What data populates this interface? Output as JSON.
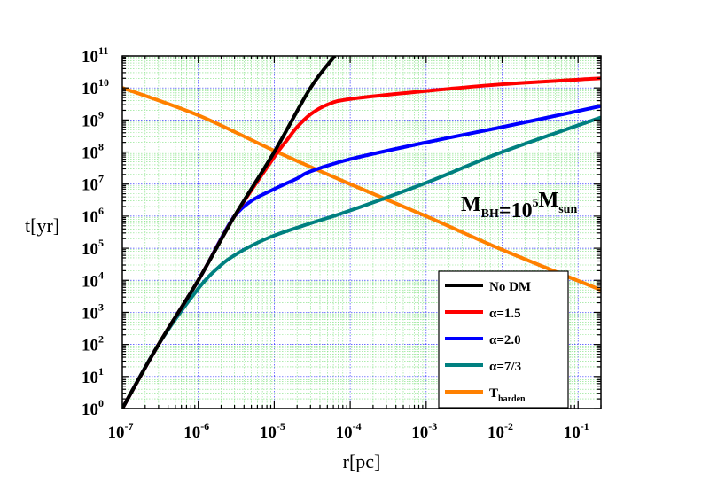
{
  "chart_data": {
    "type": "line",
    "xlabel": "r[pc]",
    "ylabel": "t[yr]",
    "x_scale": "log",
    "y_scale": "log",
    "xlim": [
      1e-07,
      0.2
    ],
    "ylim": [
      1,
      100000000000.0
    ],
    "grid": true,
    "x_ticks": [
      {
        "base": "10",
        "exp": "-7",
        "value": 1e-07
      },
      {
        "base": "10",
        "exp": "-6",
        "value": 1e-06
      },
      {
        "base": "10",
        "exp": "-5",
        "value": 1e-05
      },
      {
        "base": "10",
        "exp": "-4",
        "value": 0.0001
      },
      {
        "base": "10",
        "exp": "-3",
        "value": 0.001
      },
      {
        "base": "10",
        "exp": "-2",
        "value": 0.01
      },
      {
        "base": "10",
        "exp": "-1",
        "value": 0.1
      }
    ],
    "y_ticks": [
      {
        "base": "10",
        "exp": "0",
        "value": 1
      },
      {
        "base": "10",
        "exp": "1",
        "value": 10.0
      },
      {
        "base": "10",
        "exp": "2",
        "value": 100.0
      },
      {
        "base": "10",
        "exp": "3",
        "value": 1000.0
      },
      {
        "base": "10",
        "exp": "4",
        "value": 10000.0
      },
      {
        "base": "10",
        "exp": "5",
        "value": 100000.0
      },
      {
        "base": "10",
        "exp": "6",
        "value": 1000000.0
      },
      {
        "base": "10",
        "exp": "7",
        "value": 10000000.0
      },
      {
        "base": "10",
        "exp": "8",
        "value": 100000000.0
      },
      {
        "base": "10",
        "exp": "9",
        "value": 1000000000.0
      },
      {
        "base": "10",
        "exp": "10",
        "value": 10000000000.0
      },
      {
        "base": "10",
        "exp": "11",
        "value": 100000000000.0
      }
    ],
    "legend_position": "bottom-right",
    "annotation": {
      "parts": [
        {
          "text": "M",
          "sub": "BH"
        },
        {
          "text": "=10",
          "sup": "5"
        },
        {
          "text": "M",
          "sub": "sun"
        }
      ],
      "position": "right-middle"
    },
    "series": [
      {
        "legend": "No DM",
        "legend_sub": "",
        "color": "#000000",
        "points": [
          [
            1e-07,
            1
          ],
          [
            3e-07,
            100.0
          ],
          [
            1e-06,
            10000.0
          ],
          [
            3e-06,
            1000000.0
          ],
          [
            1e-05,
            100000000.0
          ],
          [
            3e-05,
            10000000000.0
          ],
          [
            6.3e-05,
            100000000000.0
          ]
        ]
      },
      {
        "legend": "α=1.5",
        "legend_sub": "",
        "color": "#ff0000",
        "points": [
          [
            1e-07,
            1
          ],
          [
            3e-07,
            100.0
          ],
          [
            1e-06,
            10000.0
          ],
          [
            3e-06,
            1000000.0
          ],
          [
            1e-05,
            70000000.0
          ],
          [
            1.5e-05,
            250000000.0
          ],
          [
            2e-05,
            600000000.0
          ],
          [
            3e-05,
            1500000000.0
          ],
          [
            5e-05,
            3000000000.0
          ],
          [
            0.0001,
            4500000000.0
          ],
          [
            0.001,
            8000000000.0
          ],
          [
            0.01,
            13000000000.0
          ],
          [
            0.2,
            20000000000.0
          ]
        ]
      },
      {
        "legend": "α=2.0",
        "legend_sub": "",
        "color": "#0000ff",
        "points": [
          [
            1e-07,
            1
          ],
          [
            3e-07,
            100.0
          ],
          [
            1e-06,
            10000.0
          ],
          [
            2e-06,
            200000.0
          ],
          [
            3e-06,
            1000000.0
          ],
          [
            5e-06,
            3000000.0
          ],
          [
            1e-05,
            7000000.0
          ],
          [
            2e-05,
            15000000.0
          ],
          [
            3e-05,
            25000000.0
          ],
          [
            0.0001,
            60000000.0
          ],
          [
            0.001,
            200000000.0
          ],
          [
            0.01,
            600000000.0
          ],
          [
            0.2,
            2700000000.0
          ]
        ]
      },
      {
        "legend": "α=7/3",
        "legend_sub": "",
        "color": "#008080",
        "points": [
          [
            1e-07,
            1
          ],
          [
            3e-07,
            100.0
          ],
          [
            1e-06,
            5500.0
          ],
          [
            2e-06,
            30000.0
          ],
          [
            3e-06,
            60000.0
          ],
          [
            5e-06,
            120000.0
          ],
          [
            1e-05,
            250000.0
          ],
          [
            3e-05,
            600000.0
          ],
          [
            0.0001,
            1500000.0
          ],
          [
            0.001,
            11000000.0
          ],
          [
            0.01,
            100000000.0
          ],
          [
            0.2,
            1200000000.0
          ]
        ]
      },
      {
        "legend": "T",
        "legend_sub": "harden",
        "color": "#ff8000",
        "points": [
          [
            1e-07,
            10000000000.0
          ],
          [
            1e-06,
            1400000000.0
          ],
          [
            1e-05,
            110000000.0
          ],
          [
            0.0001,
            10000000.0
          ],
          [
            0.001,
            1000000.0
          ],
          [
            0.01,
            90000.0
          ],
          [
            0.2,
            5000.0
          ]
        ]
      }
    ]
  }
}
